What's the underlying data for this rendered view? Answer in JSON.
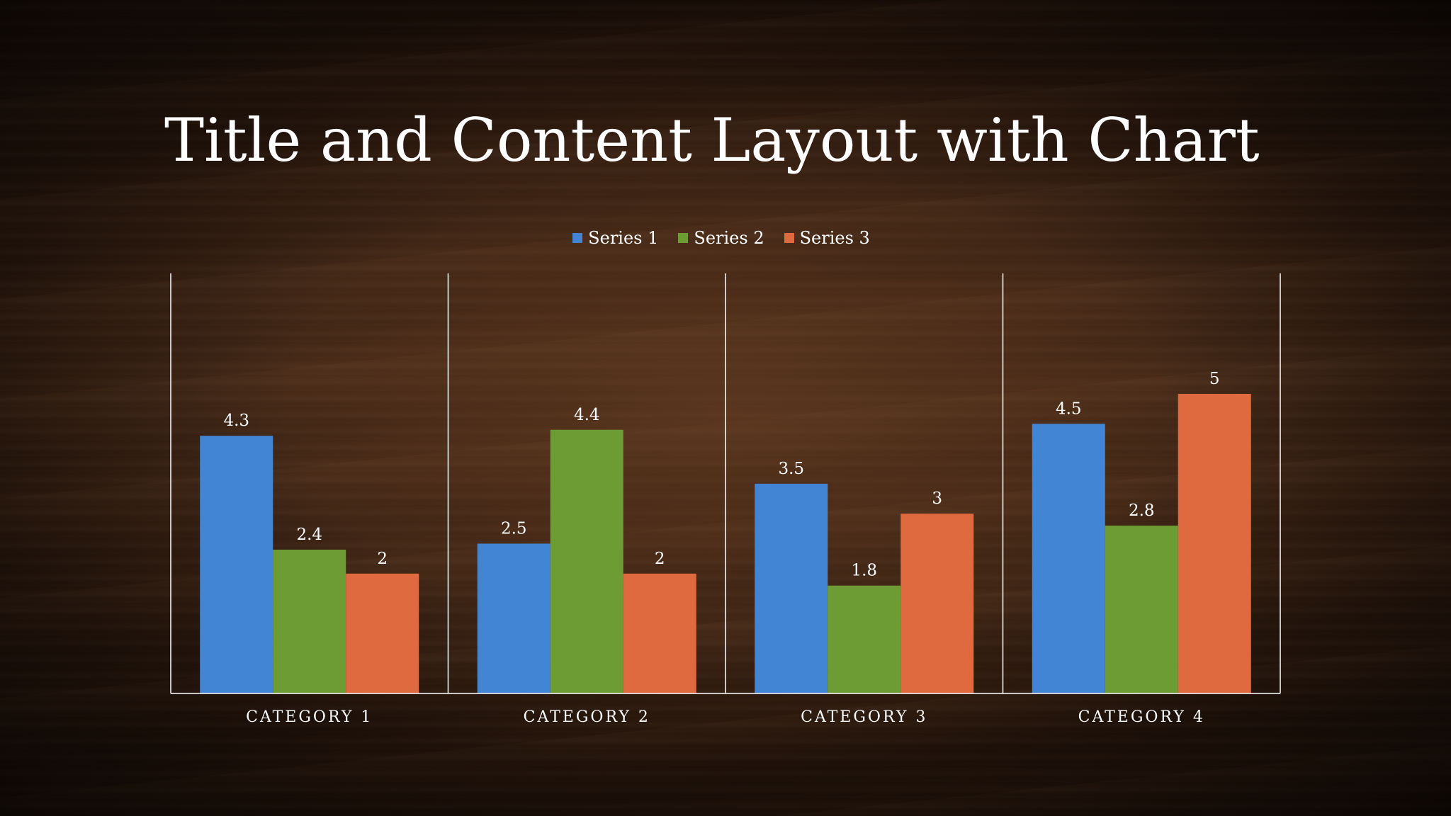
{
  "slide": {
    "title": "Title and Content Layout with Chart"
  },
  "chart_data": {
    "type": "bar",
    "categories": [
      "CATEGORY 1",
      "CATEGORY 2",
      "CATEGORY 3",
      "CATEGORY 4"
    ],
    "series": [
      {
        "name": "Series 1",
        "values": [
          4.3,
          2.5,
          3.5,
          4.5
        ],
        "color": "#4285d4"
      },
      {
        "name": "Series 2",
        "values": [
          2.4,
          4.4,
          1.8,
          2.8
        ],
        "color": "#6e9c34"
      },
      {
        "name": "Series 3",
        "values": [
          2,
          2,
          3,
          5
        ],
        "color": "#df6a3f"
      }
    ],
    "data_labels": true,
    "legend_position": "top",
    "ylim": [
      0,
      6
    ]
  }
}
